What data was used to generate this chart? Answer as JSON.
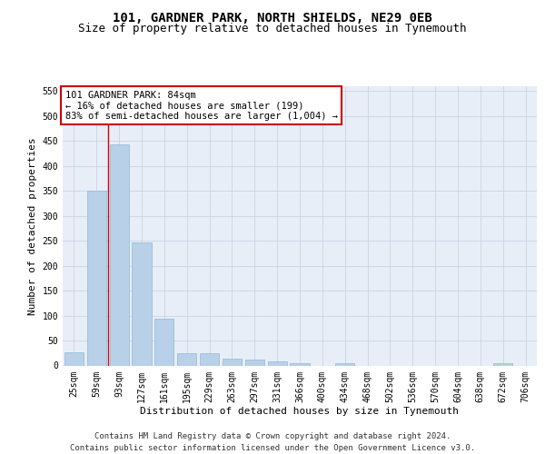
{
  "title_line1": "101, GARDNER PARK, NORTH SHIELDS, NE29 0EB",
  "title_line2": "Size of property relative to detached houses in Tynemouth",
  "xlabel": "Distribution of detached houses by size in Tynemouth",
  "ylabel": "Number of detached properties",
  "categories": [
    "25sqm",
    "59sqm",
    "93sqm",
    "127sqm",
    "161sqm",
    "195sqm",
    "229sqm",
    "263sqm",
    "297sqm",
    "331sqm",
    "366sqm",
    "400sqm",
    "434sqm",
    "468sqm",
    "502sqm",
    "536sqm",
    "570sqm",
    "604sqm",
    "638sqm",
    "672sqm",
    "706sqm"
  ],
  "bar_values": [
    27,
    350,
    443,
    246,
    93,
    24,
    24,
    13,
    11,
    8,
    5,
    0,
    5,
    0,
    0,
    0,
    0,
    0,
    0,
    5,
    0
  ],
  "bar_color": "#b8d0e8",
  "bar_edge_color": "#90b8d8",
  "ylim_max": 560,
  "yticks": [
    0,
    50,
    100,
    150,
    200,
    250,
    300,
    350,
    400,
    450,
    500,
    550
  ],
  "red_line_x": 1.5,
  "annotation_title": "101 GARDNER PARK: 84sqm",
  "annotation_line1": "← 16% of detached houses are smaller (199)",
  "annotation_line2": "83% of semi-detached houses are larger (1,004) →",
  "footer_line1": "Contains HM Land Registry data © Crown copyright and database right 2024.",
  "footer_line2": "Contains public sector information licensed under the Open Government Licence v3.0.",
  "grid_color": "#c8d4e4",
  "bg_color": "#e8eef8",
  "title_fs": 10,
  "subtitle_fs": 9,
  "axis_label_fs": 8,
  "tick_fs": 7,
  "footer_fs": 6.5,
  "ann_fs": 7.5
}
